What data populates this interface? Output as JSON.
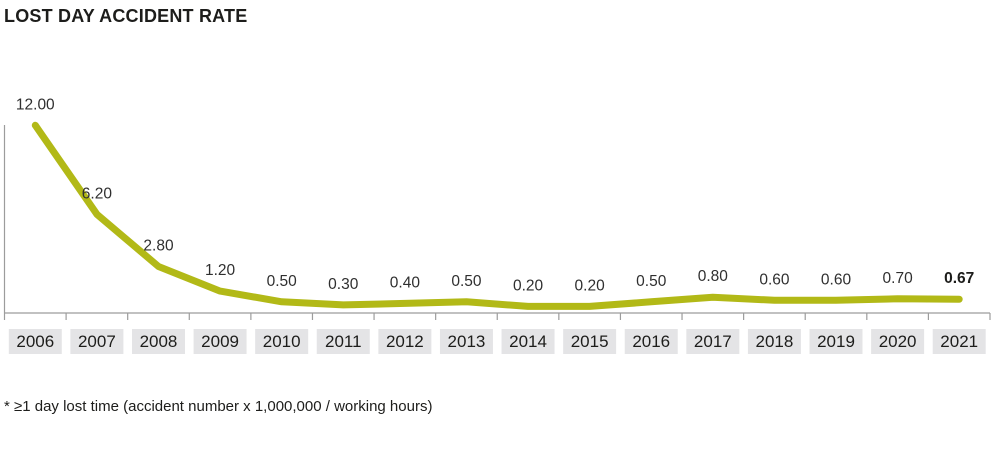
{
  "title": "LOST DAY ACCIDENT RATE",
  "footnote": "* ≥1 day lost time (accident number x 1,000,000 / working hours)",
  "colors": {
    "line": "#b2b917",
    "axis": "#9c9c9c",
    "value_label_text": "#2f2f2f",
    "year_box_bg": "#e4e4e6",
    "year_text": "#1d1d1b",
    "title_text": "#1d1d1b"
  },
  "chart_data": {
    "type": "line",
    "title": "LOST DAY ACCIDENT RATE",
    "categories": [
      "2006",
      "2007",
      "2008",
      "2009",
      "2010",
      "2011",
      "2012",
      "2013",
      "2014",
      "2015",
      "2016",
      "2017",
      "2018",
      "2019",
      "2020",
      "2021"
    ],
    "values": [
      12.0,
      6.2,
      2.8,
      1.2,
      0.5,
      0.3,
      0.4,
      0.5,
      0.2,
      0.2,
      0.5,
      0.8,
      0.6,
      0.6,
      0.7,
      0.67
    ],
    "value_labels": [
      "12.00",
      "6.20",
      "2.80",
      "1.20",
      "0.50",
      "0.30",
      "0.40",
      "0.50",
      "0.20",
      "0.20",
      "0.50",
      "0.80",
      "0.60",
      "0.60",
      "0.70",
      "0.67"
    ],
    "last_label_bold": true,
    "xlabel": "",
    "ylabel": "",
    "ylim": [
      0,
      12.3
    ],
    "grid": false,
    "legend": false
  }
}
